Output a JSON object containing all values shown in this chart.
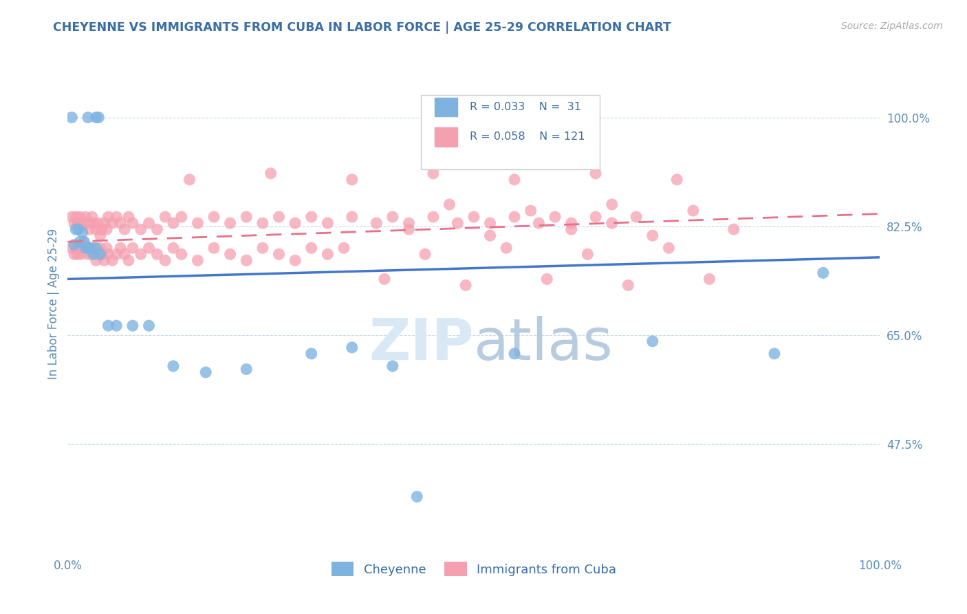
{
  "title": "CHEYENNE VS IMMIGRANTS FROM CUBA IN LABOR FORCE | AGE 25-29 CORRELATION CHART",
  "source": "Source: ZipAtlas.com",
  "ylabel": "In Labor Force | Age 25-29",
  "xlim": [
    0.0,
    1.0
  ],
  "ylim": [
    0.3,
    1.1
  ],
  "yticks": [
    0.475,
    0.65,
    0.825,
    1.0
  ],
  "ytick_labels": [
    "47.5%",
    "65.0%",
    "82.5%",
    "100.0%"
  ],
  "xticks": [
    0.0,
    0.25,
    0.5,
    0.75,
    1.0
  ],
  "xtick_labels": [
    "0.0%",
    "",
    "",
    "",
    "100.0%"
  ],
  "legend_r1": "R = 0.033",
  "legend_n1": "N =  31",
  "legend_r2": "R = 0.058",
  "legend_n2": "N = 121",
  "legend_label1": "Cheyenne",
  "legend_label2": "Immigrants from Cuba",
  "blue_color": "#7EB3E0",
  "pink_color": "#F5A0B0",
  "line_blue": "#4477CC",
  "line_pink": "#E8708A",
  "title_color": "#3A6EA5",
  "axis_color": "#5B8DB8",
  "watermark_color": "#D8E8F5",
  "blue_line_start_y": 0.74,
  "blue_line_end_y": 0.775,
  "pink_line_start_y": 0.8,
  "pink_line_end_y": 0.845,
  "cheyenne_x": [
    0.005,
    0.025,
    0.035,
    0.038,
    0.008,
    0.01,
    0.013,
    0.015,
    0.018,
    0.02,
    0.022,
    0.025,
    0.028,
    0.032,
    0.035,
    0.04,
    0.05,
    0.06,
    0.08,
    0.1,
    0.13,
    0.17,
    0.22,
    0.3,
    0.35,
    0.4,
    0.43,
    0.55,
    0.72,
    0.87,
    0.93
  ],
  "cheyenne_y": [
    1.0,
    1.0,
    1.0,
    1.0,
    0.795,
    0.82,
    0.82,
    0.8,
    0.815,
    0.8,
    0.79,
    0.79,
    0.79,
    0.78,
    0.79,
    0.78,
    0.665,
    0.665,
    0.665,
    0.665,
    0.6,
    0.59,
    0.595,
    0.62,
    0.63,
    0.6,
    0.39,
    0.62,
    0.64,
    0.62,
    0.75
  ],
  "cuba_x": [
    0.005,
    0.008,
    0.01,
    0.012,
    0.015,
    0.017,
    0.02,
    0.022,
    0.025,
    0.027,
    0.005,
    0.008,
    0.01,
    0.012,
    0.015,
    0.017,
    0.02,
    0.022,
    0.025,
    0.027,
    0.03,
    0.032,
    0.035,
    0.037,
    0.04,
    0.042,
    0.045,
    0.048,
    0.05,
    0.055,
    0.03,
    0.032,
    0.035,
    0.037,
    0.04,
    0.042,
    0.045,
    0.048,
    0.05,
    0.055,
    0.06,
    0.065,
    0.07,
    0.075,
    0.08,
    0.09,
    0.1,
    0.11,
    0.12,
    0.13,
    0.06,
    0.065,
    0.07,
    0.075,
    0.08,
    0.09,
    0.1,
    0.11,
    0.12,
    0.13,
    0.14,
    0.16,
    0.18,
    0.2,
    0.22,
    0.24,
    0.26,
    0.28,
    0.3,
    0.32,
    0.14,
    0.16,
    0.18,
    0.2,
    0.22,
    0.24,
    0.26,
    0.28,
    0.3,
    0.32,
    0.35,
    0.38,
    0.4,
    0.42,
    0.45,
    0.48,
    0.5,
    0.52,
    0.55,
    0.58,
    0.6,
    0.62,
    0.65,
    0.67,
    0.7,
    0.34,
    0.44,
    0.54,
    0.64,
    0.74,
    0.15,
    0.25,
    0.35,
    0.45,
    0.55,
    0.65,
    0.75,
    0.39,
    0.49,
    0.59,
    0.69,
    0.79,
    0.42,
    0.52,
    0.62,
    0.72,
    0.82,
    0.47,
    0.57,
    0.67,
    0.77
  ],
  "cuba_y": [
    0.84,
    0.83,
    0.84,
    0.83,
    0.84,
    0.83,
    0.83,
    0.84,
    0.83,
    0.82,
    0.79,
    0.78,
    0.79,
    0.78,
    0.79,
    0.78,
    0.8,
    0.79,
    0.78,
    0.79,
    0.84,
    0.83,
    0.82,
    0.83,
    0.81,
    0.82,
    0.83,
    0.82,
    0.84,
    0.83,
    0.78,
    0.79,
    0.77,
    0.78,
    0.79,
    0.78,
    0.77,
    0.79,
    0.78,
    0.77,
    0.84,
    0.83,
    0.82,
    0.84,
    0.83,
    0.82,
    0.83,
    0.82,
    0.84,
    0.83,
    0.78,
    0.79,
    0.78,
    0.77,
    0.79,
    0.78,
    0.79,
    0.78,
    0.77,
    0.79,
    0.84,
    0.83,
    0.84,
    0.83,
    0.84,
    0.83,
    0.84,
    0.83,
    0.84,
    0.83,
    0.78,
    0.77,
    0.79,
    0.78,
    0.77,
    0.79,
    0.78,
    0.77,
    0.79,
    0.78,
    0.84,
    0.83,
    0.84,
    0.83,
    0.84,
    0.83,
    0.84,
    0.83,
    0.84,
    0.83,
    0.84,
    0.83,
    0.84,
    0.83,
    0.84,
    0.79,
    0.78,
    0.79,
    0.78,
    0.79,
    0.9,
    0.91,
    0.9,
    0.91,
    0.9,
    0.91,
    0.9,
    0.74,
    0.73,
    0.74,
    0.73,
    0.74,
    0.82,
    0.81,
    0.82,
    0.81,
    0.82,
    0.86,
    0.85,
    0.86,
    0.85
  ]
}
